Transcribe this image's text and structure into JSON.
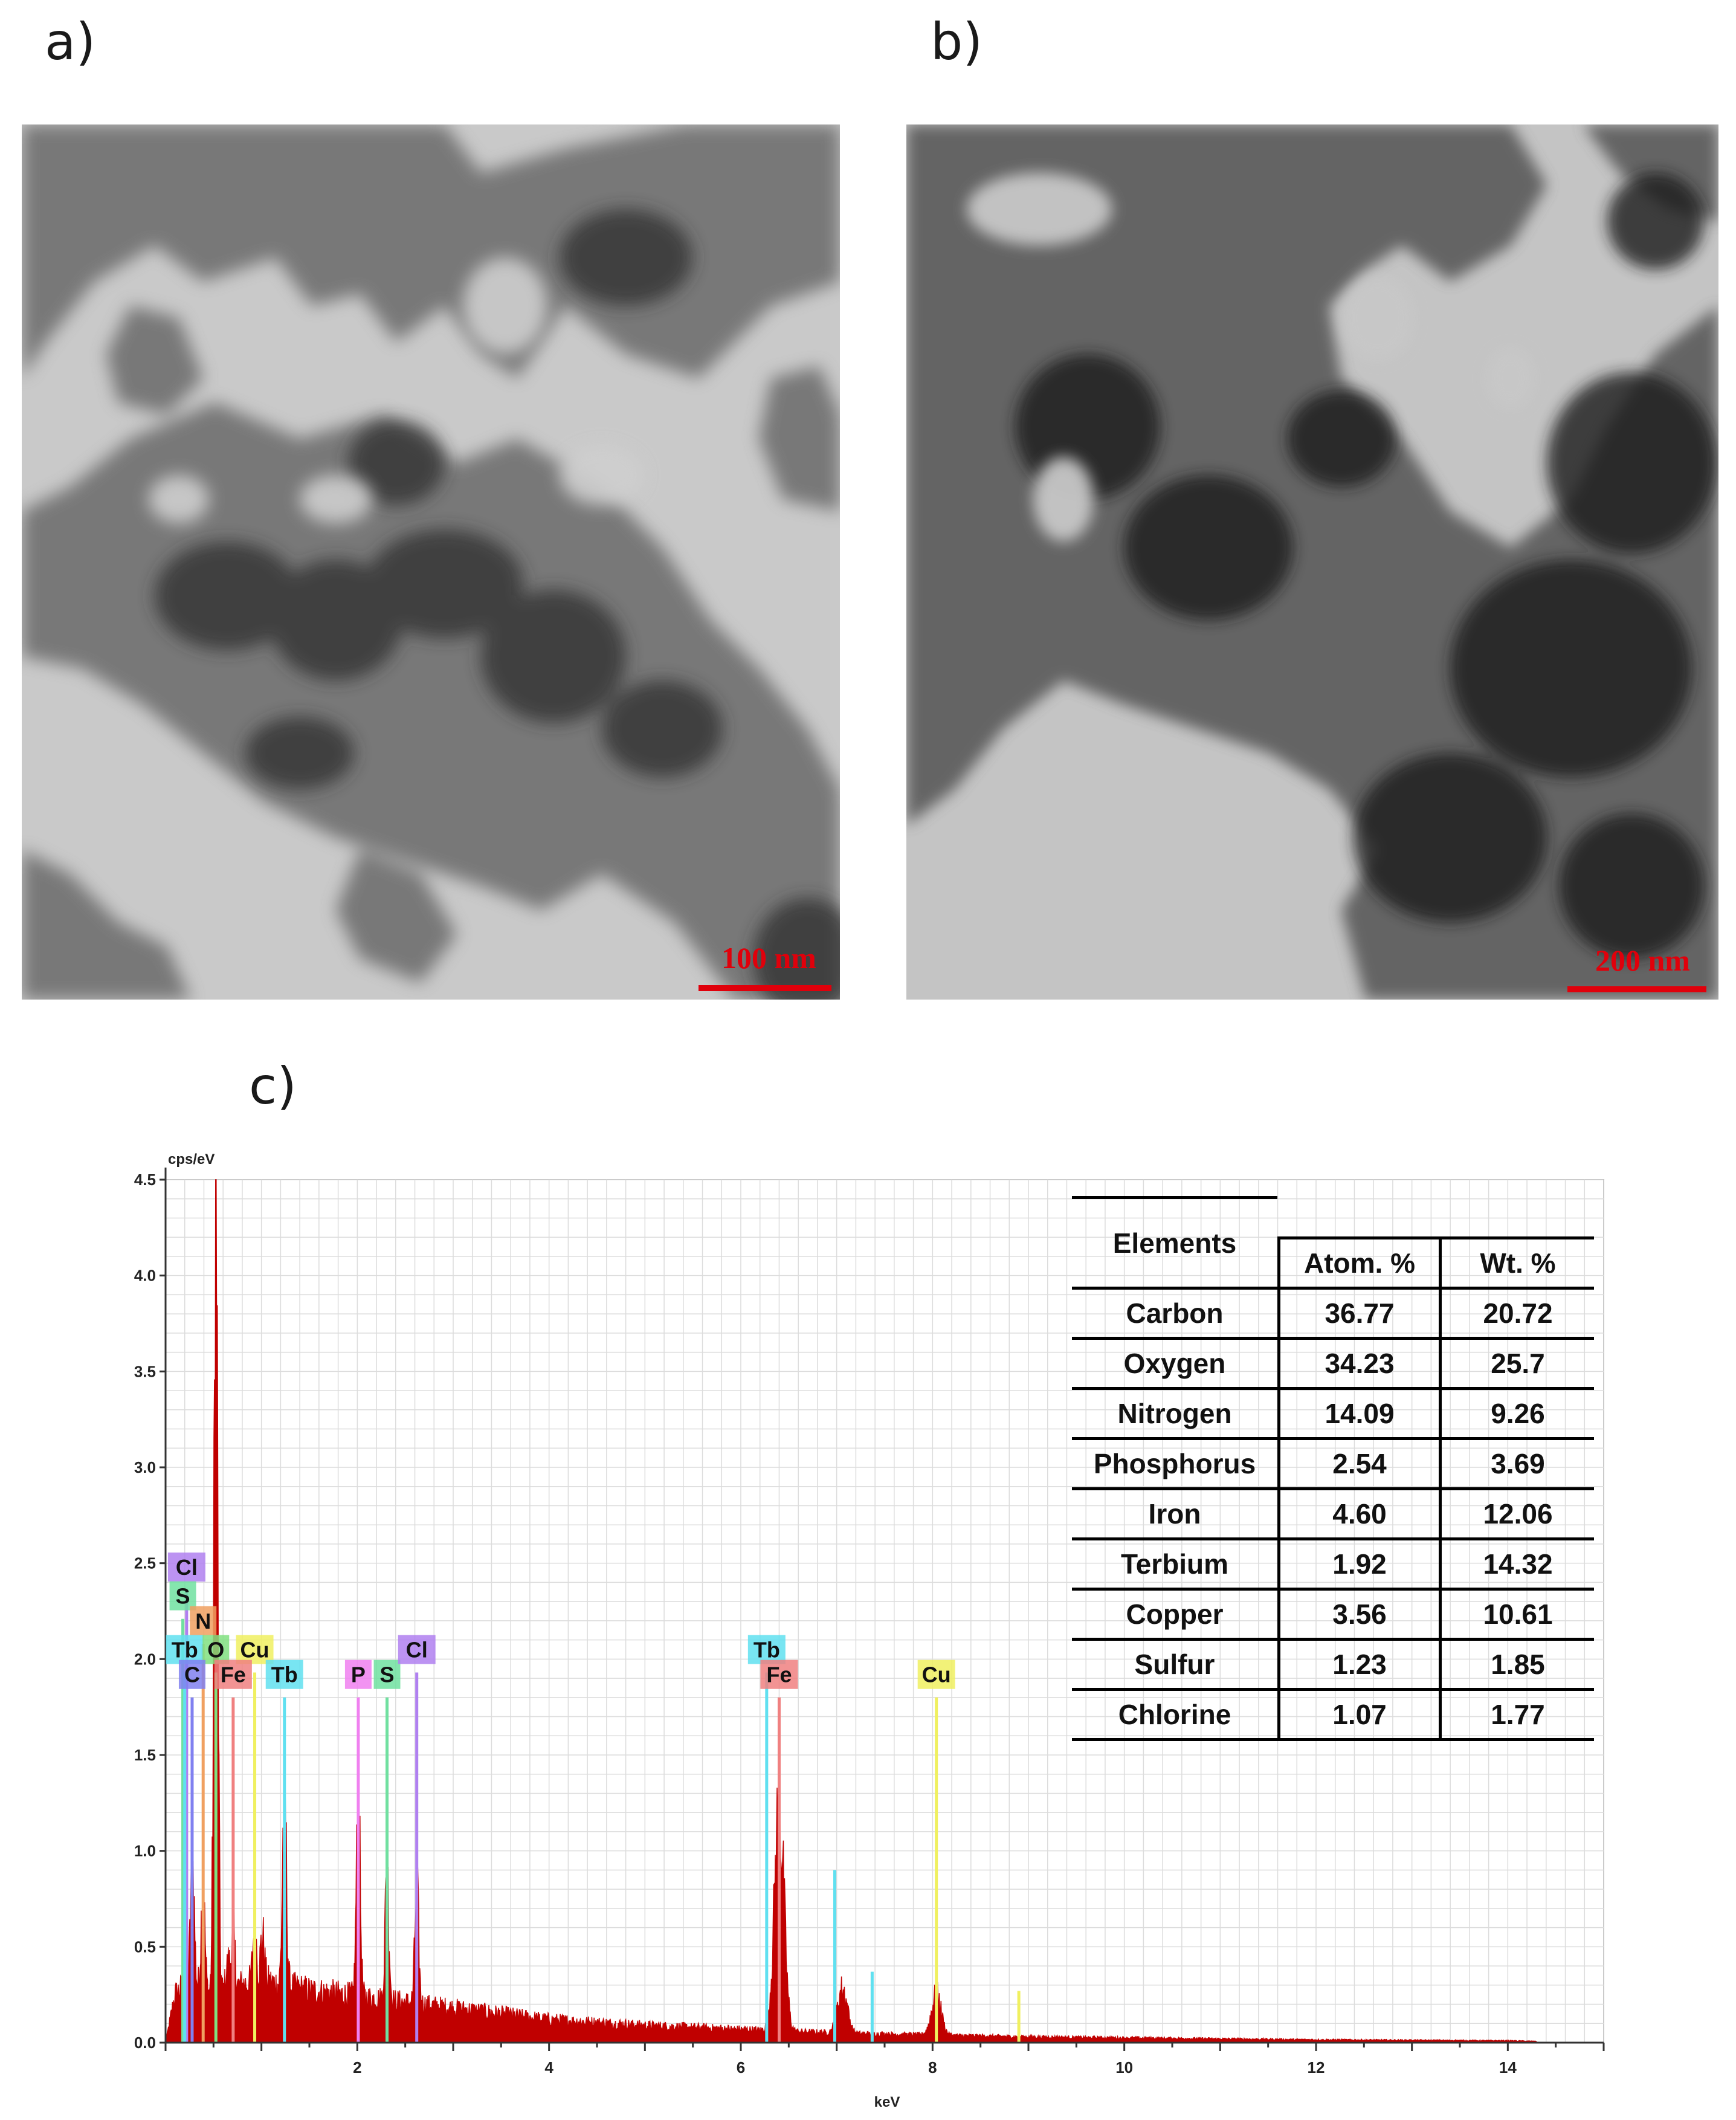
{
  "panels": {
    "a": {
      "label": "a)",
      "scale_bar": "100 nm"
    },
    "b": {
      "label": "b)",
      "scale_bar": "200 nm"
    },
    "c": {
      "label": "c)"
    }
  },
  "chart_data": {
    "type": "line",
    "title": "",
    "ylabel": "cps/eV",
    "xlabel": "keV",
    "xlim": [
      0,
      15
    ],
    "ylim": [
      0,
      4.5
    ],
    "x_ticks": [
      "2",
      "4",
      "6",
      "8",
      "10",
      "12",
      "14"
    ],
    "y_ticks": [
      "0.0",
      "0.5",
      "1.0",
      "1.5",
      "2.0",
      "2.5",
      "3.0",
      "3.5",
      "4.0",
      "4.5"
    ],
    "grid": true,
    "spectrum_color": "#c00000",
    "background_level": [
      [
        0.0,
        0.0
      ],
      [
        0.1,
        0.25
      ],
      [
        0.2,
        0.3
      ],
      [
        0.5,
        0.25
      ],
      [
        0.8,
        0.3
      ],
      [
        1.0,
        0.32
      ],
      [
        1.5,
        0.27
      ],
      [
        2.0,
        0.24
      ],
      [
        3.0,
        0.18
      ],
      [
        4.0,
        0.12
      ],
      [
        5.0,
        0.09
      ],
      [
        6.0,
        0.07
      ],
      [
        7.0,
        0.05
      ],
      [
        8.0,
        0.04
      ],
      [
        9.0,
        0.03
      ],
      [
        10.0,
        0.025
      ],
      [
        12.0,
        0.015
      ],
      [
        14.0,
        0.01
      ],
      [
        15.0,
        0.0
      ]
    ],
    "peaks": [
      {
        "x": 0.28,
        "y": 0.95
      },
      {
        "x": 0.39,
        "y": 0.8
      },
      {
        "x": 0.525,
        "y": 4.22
      },
      {
        "x": 0.65,
        "y": 0.4
      },
      {
        "x": 0.705,
        "y": 0.55
      },
      {
        "x": 0.93,
        "y": 0.6
      },
      {
        "x": 1.01,
        "y": 0.55
      },
      {
        "x": 1.24,
        "y": 1.35
      },
      {
        "x": 2.01,
        "y": 1.25
      },
      {
        "x": 2.31,
        "y": 0.9
      },
      {
        "x": 2.62,
        "y": 0.8
      },
      {
        "x": 6.4,
        "y": 1.2
      },
      {
        "x": 7.06,
        "y": 0.28
      },
      {
        "x": 8.04,
        "y": 0.25
      }
    ],
    "element_lines": [
      {
        "element": "Cl",
        "x": 0.22,
        "height": 2.48,
        "color": "#b080f0"
      },
      {
        "element": "S",
        "x": 0.18,
        "height": 2.33,
        "color": "#70e0a0"
      },
      {
        "element": "N",
        "x": 0.392,
        "height": 2.2,
        "color": "#f0a060"
      },
      {
        "element": "Tb",
        "x": 0.2,
        "height": 2.05,
        "color": "#60e0f0"
      },
      {
        "element": "O",
        "x": 0.525,
        "height": 2.05,
        "color": "#80e080"
      },
      {
        "element": "Cu",
        "x": 0.93,
        "height": 2.05,
        "color": "#f0f060"
      },
      {
        "element": "C",
        "x": 0.277,
        "height": 1.92,
        "color": "#8080f0"
      },
      {
        "element": "Fe",
        "x": 0.705,
        "height": 1.92,
        "color": "#f08080"
      },
      {
        "element": "Tb",
        "x": 1.24,
        "height": 1.92,
        "color": "#60e0f0"
      },
      {
        "element": "P",
        "x": 2.01,
        "height": 1.92,
        "color": "#f080f0"
      },
      {
        "element": "S",
        "x": 2.31,
        "height": 1.92,
        "color": "#70e0a0"
      },
      {
        "element": "Cl",
        "x": 2.62,
        "height": 2.05,
        "color": "#b080f0"
      },
      {
        "element": "Tb",
        "x": 6.27,
        "height": 2.05,
        "color": "#60e0f0"
      },
      {
        "element": "Fe",
        "x": 6.4,
        "height": 1.92,
        "color": "#f08080"
      },
      {
        "element": "Cu",
        "x": 8.04,
        "height": 1.92,
        "color": "#f0f060"
      }
    ],
    "minor_lines": [
      {
        "x": 6.98,
        "height": 0.9,
        "color": "#60e0f0"
      },
      {
        "x": 7.37,
        "height": 0.37,
        "color": "#60e0f0"
      },
      {
        "x": 8.9,
        "height": 0.27,
        "color": "#f0f060"
      }
    ]
  },
  "table": {
    "header": {
      "elements": "Elements",
      "atom": "Atom. %",
      "wt": "Wt. %"
    },
    "rows": [
      {
        "element": "Carbon",
        "atom": "36.77",
        "wt": "20.72"
      },
      {
        "element": "Oxygen",
        "atom": "34.23",
        "wt": "25.7"
      },
      {
        "element": "Nitrogen",
        "atom": "14.09",
        "wt": "9.26"
      },
      {
        "element": "Phosphorus",
        "atom": "2.54",
        "wt": "3.69"
      },
      {
        "element": "Iron",
        "atom": "4.60",
        "wt": "12.06"
      },
      {
        "element": "Terbium",
        "atom": "1.92",
        "wt": "14.32"
      },
      {
        "element": "Copper",
        "atom": "3.56",
        "wt": "10.61"
      },
      {
        "element": "Sulfur",
        "atom": "1.23",
        "wt": "1.85"
      },
      {
        "element": "Chlorine",
        "atom": "1.07",
        "wt": "1.77"
      }
    ]
  }
}
